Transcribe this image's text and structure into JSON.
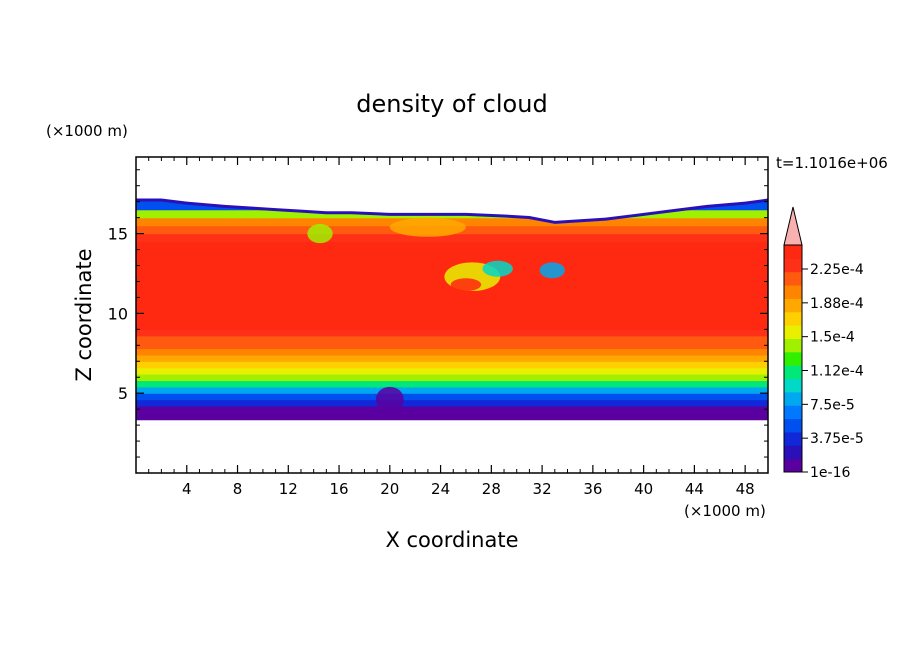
{
  "chart_data": {
    "type": "heatmap",
    "title": "density of cloud",
    "xlabel": "X coordinate",
    "ylabel": "Z coordinate",
    "x_unit_label": "(×1000 m)",
    "y_unit_label": "(×1000 m)",
    "time_label": "t=1.1016e+06",
    "xlim": [
      0,
      49.8
    ],
    "ylim": [
      0,
      19.8
    ],
    "x_ticks": [
      4,
      8,
      12,
      16,
      20,
      24,
      28,
      32,
      36,
      40,
      44,
      48
    ],
    "y_ticks": [
      5,
      10,
      15
    ],
    "colorbar": {
      "labels": [
        "2.25e-4",
        "1.88e-4",
        "1.5e-4",
        "1.12e-4",
        "7.5e-5",
        "3.75e-5",
        "1e-16"
      ],
      "colors": [
        "#5a00a0",
        "#2a10b8",
        "#1028d8",
        "#0050f0",
        "#0078ff",
        "#00a8f0",
        "#00d8c8",
        "#00e878",
        "#30f000",
        "#a0f000",
        "#e8f000",
        "#ffd000",
        "#ffa800",
        "#ff8400",
        "#ff5a10",
        "#ff3018",
        "#ff2810"
      ],
      "extend_color": "#f8b0b0"
    },
    "cloud_profile": {
      "z": [
        3.4,
        3.8,
        4.2,
        4.6,
        5.0,
        5.4,
        5.8,
        6.2,
        6.6,
        7.0,
        7.4,
        7.8,
        8.2,
        8.6,
        9.0,
        14.0,
        14.5,
        15.0,
        15.5,
        16.0,
        16.5
      ],
      "density": [
        1e-16,
        1e-05,
        3e-05,
        5e-05,
        7.5e-05,
        0.0001,
        0.00013,
        0.00015,
        0.000165,
        0.00018,
        0.00019,
        0.0002,
        0.00021,
        0.00022,
        0.00023,
        0.00023,
        0.00022,
        0.000205,
        0.00019,
        0.00014,
        7.5e-05
      ]
    },
    "cloud_top": {
      "x": [
        0,
        2,
        4,
        7,
        9,
        11,
        13,
        15,
        17,
        20,
        23,
        26,
        29,
        31,
        33,
        35,
        37,
        39,
        42,
        45,
        48,
        49.8
      ],
      "z": [
        17.2,
        17.2,
        17.0,
        16.8,
        16.7,
        16.6,
        16.5,
        16.4,
        16.4,
        16.3,
        16.3,
        16.3,
        16.2,
        16.1,
        15.8,
        15.9,
        16.0,
        16.2,
        16.5,
        16.8,
        17.0,
        17.2
      ]
    },
    "cloud_base_z": 3.4
  }
}
